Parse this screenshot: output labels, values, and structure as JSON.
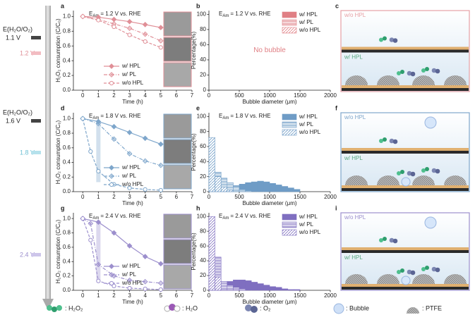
{
  "potentials": {
    "label_top": "E(H₂O/O₂)",
    "top_1": "1.1 V",
    "level_a": "1.2 V",
    "label_mid": "E(H₂O/O₂)",
    "mid_1": "1.6 V",
    "level_d": "1.8 V",
    "level_g": "2.4 V"
  },
  "chart_data": [
    {
      "panel": "a",
      "type": "line",
      "annotation": {
        "symbol": "E",
        "subscript": "Am",
        "text": "= 1.2 V vs. RHE"
      },
      "x_label": "Time (h)",
      "y_label": "H₂O₂ consumption (C/C₀)",
      "xlim": [
        -0.6,
        7
      ],
      "xticks": [
        0,
        1,
        2,
        3,
        4,
        5,
        6,
        7
      ],
      "ylim": [
        0,
        1.08
      ],
      "yticks": [
        {
          "value": 0,
          "label": "0.0"
        },
        0.2,
        0.4,
        0.6,
        0.8,
        {
          "value": 1,
          "label": "1.0"
        }
      ],
      "legend": "lower right",
      "series": [
        {
          "name": "w/ HPL",
          "color": "#e08f97",
          "marker": "diamond",
          "line": "solid",
          "x": [
            0,
            1,
            2,
            3,
            4,
            5
          ],
          "values": [
            1.0,
            0.99,
            0.96,
            0.93,
            0.89,
            0.85
          ]
        },
        {
          "name": "w/ PL",
          "color": "#e08f97",
          "marker": "half-diamond",
          "line": "dashdot",
          "x": [
            0,
            1,
            2,
            3,
            4,
            5
          ],
          "values": [
            1.0,
            0.96,
            0.9,
            0.84,
            0.76,
            0.67
          ]
        },
        {
          "name": "w/o HPL",
          "color": "#e08f97",
          "marker": "circle",
          "line": "dashed",
          "x": [
            0,
            1,
            2,
            3,
            4,
            5
          ],
          "values": [
            1.0,
            0.95,
            0.86,
            0.75,
            0.66,
            0.58
          ]
        }
      ]
    },
    {
      "panel": "b",
      "type": "histogram",
      "annotation": {
        "symbol": "E",
        "subscript": "Am",
        "text": "= 1.2 V vs. RHE"
      },
      "note": "No bubble",
      "x_label": "Bubble diameter (μm)",
      "y_label": "Percentage(%)",
      "xlim": [
        0,
        2000
      ],
      "xticks": [
        0,
        500,
        1000,
        1500,
        2000
      ],
      "ylim": [
        0,
        105
      ],
      "yticks": [
        0,
        20,
        40,
        60,
        80,
        100
      ],
      "legend": "upper right",
      "series": [
        {
          "name": "w/ HPL",
          "color": "#e07f84",
          "pattern": "solid",
          "bins": [],
          "values": []
        },
        {
          "name": "w/ PL",
          "color": "#e07f84",
          "pattern": "lines",
          "bins": [],
          "values": []
        },
        {
          "name": "w/o HPL",
          "color": "#e07f84",
          "pattern": "hatch",
          "bins": [],
          "values": []
        }
      ]
    },
    {
      "panel": "d",
      "type": "line",
      "annotation": {
        "symbol": "E",
        "subscript": "Am",
        "text": "= 1.8 V vs. RHE"
      },
      "x_label": "Time (h)",
      "y_label": "H₂O₂ consumption (C/C₀)",
      "xlim": [
        -0.6,
        7
      ],
      "xticks": [
        0,
        1,
        2,
        3,
        4,
        5,
        6,
        7
      ],
      "ylim": [
        0,
        1.08
      ],
      "yticks": [
        {
          "value": 0,
          "label": "0.0"
        },
        0.2,
        0.4,
        0.6,
        0.8,
        {
          "value": 1,
          "label": "1.0"
        }
      ],
      "legend": "lower right",
      "series": [
        {
          "name": "w/ HPL",
          "color": "#7ea6cb",
          "marker": "diamond",
          "line": "solid",
          "x": [
            0,
            1,
            2,
            3,
            4,
            5
          ],
          "values": [
            1.0,
            0.96,
            0.89,
            0.81,
            0.73,
            0.65
          ]
        },
        {
          "name": "w/ PL",
          "color": "#7ea6cb",
          "marker": "half-diamond",
          "line": "dashdot",
          "x": [
            0,
            1,
            2,
            3,
            4,
            5
          ],
          "values": [
            1.0,
            0.93,
            0.72,
            0.52,
            0.42,
            0.36
          ]
        },
        {
          "name": "w/o HPL",
          "color": "#7ea6cb",
          "marker": "circle",
          "line": "dashed",
          "x": [
            0,
            0.5,
            1,
            2,
            3,
            4,
            5
          ],
          "values": [
            1.0,
            0.55,
            0.28,
            0.1,
            0.05,
            0.03,
            0.02
          ]
        }
      ]
    },
    {
      "panel": "e",
      "type": "histogram",
      "annotation": {
        "symbol": "E",
        "subscript": "Am",
        "text": "= 1.8 V vs. RHE"
      },
      "x_label": "Bubble diameter (μm)",
      "y_label": "Percentage(%)",
      "xlim": [
        0,
        2000
      ],
      "xticks": [
        0,
        500,
        1000,
        1500,
        2000
      ],
      "ylim": [
        0,
        105
      ],
      "yticks": [
        0,
        20,
        40,
        60,
        80,
        100
      ],
      "legend": "upper right",
      "series": [
        {
          "name": "w/ HPL",
          "color": "#6f9cc6",
          "pattern": "solid",
          "bins": [
            0,
            100,
            200,
            300,
            400,
            500,
            600,
            700,
            800,
            900,
            1000,
            1100,
            1200,
            1300,
            1400,
            1500
          ],
          "values": [
            2,
            3,
            4,
            6,
            8,
            10,
            12,
            13,
            14,
            13,
            11,
            9,
            7,
            5,
            3
          ]
        },
        {
          "name": "w/ PL",
          "color": "#6f9cc6",
          "pattern": "lines",
          "bins": [
            0,
            100,
            200,
            300,
            400,
            500,
            600,
            700
          ],
          "values": [
            33,
            26,
            18,
            12,
            7,
            3,
            1
          ]
        },
        {
          "name": "w/o HPL",
          "color": "#6f9cc6",
          "pattern": "hatch",
          "bins": [
            0,
            100,
            200,
            300,
            400
          ],
          "values": [
            72,
            20,
            6,
            2
          ]
        }
      ]
    },
    {
      "panel": "g",
      "type": "line",
      "annotation": {
        "symbol": "E",
        "subscript": "Am",
        "text": "= 2.4 V vs. RHE"
      },
      "x_label": "Time (h)",
      "y_label": "H₂O₂ consumption (C/C₀)",
      "xlim": [
        -0.6,
        7
      ],
      "xticks": [
        0,
        1,
        2,
        3,
        4,
        5,
        6,
        7
      ],
      "ylim": [
        0,
        1.08
      ],
      "yticks": [
        {
          "value": 0,
          "label": "0.0"
        },
        0.2,
        0.4,
        0.6,
        0.8,
        {
          "value": 1,
          "label": "1.0"
        }
      ],
      "legend": "lower right",
      "series": [
        {
          "name": "w/ HPL",
          "color": "#9c8fcd",
          "marker": "diamond",
          "line": "solid",
          "x": [
            0,
            1,
            2,
            3,
            4,
            5
          ],
          "values": [
            1.0,
            0.95,
            0.8,
            0.62,
            0.47,
            0.37
          ]
        },
        {
          "name": "w/ PL",
          "color": "#9c8fcd",
          "marker": "half-diamond",
          "line": "dashdot",
          "x": [
            0,
            0.5,
            1,
            2,
            3,
            4,
            5
          ],
          "values": [
            1.0,
            0.93,
            0.36,
            0.2,
            0.14,
            0.12,
            0.1
          ]
        },
        {
          "name": "w/o HPL",
          "color": "#9c8fcd",
          "marker": "circle",
          "line": "dashed",
          "x": [
            0,
            0.5,
            1,
            2,
            3,
            4,
            5
          ],
          "values": [
            1.0,
            0.7,
            0.13,
            0.06,
            0.03,
            0.02,
            0.01
          ]
        }
      ]
    },
    {
      "panel": "h",
      "type": "histogram",
      "annotation": {
        "symbol": "E",
        "subscript": "Am",
        "text": "= 2.4 V vs. RHE"
      },
      "x_label": "Bubble diameter (μm)",
      "y_label": "Percentage(%)",
      "xlim": [
        0,
        2000
      ],
      "xticks": [
        0,
        500,
        1000,
        1500,
        2000
      ],
      "ylim": [
        0,
        105
      ],
      "yticks": [
        0,
        20,
        40,
        60,
        80,
        100
      ],
      "legend": "upper right",
      "series": [
        {
          "name": "w/ HPL",
          "color": "#7f6fc0",
          "pattern": "solid",
          "bins": [
            0,
            100,
            200,
            300,
            400,
            500,
            600,
            700,
            800,
            900,
            1000,
            1100,
            1200,
            1300,
            1400,
            1500
          ],
          "values": [
            3,
            6,
            9,
            12,
            14,
            14,
            13,
            11,
            9,
            7,
            5,
            4,
            2,
            1,
            1
          ]
        },
        {
          "name": "w/ PL",
          "color": "#7f6fc0",
          "pattern": "lines",
          "bins": [
            0,
            100,
            200,
            300,
            400,
            500,
            600
          ],
          "values": [
            40,
            45,
            12,
            7,
            4,
            2
          ]
        },
        {
          "name": "w/o HPL",
          "color": "#7f6fc0",
          "pattern": "hatch",
          "bins": [
            0,
            100,
            200
          ],
          "values": [
            100,
            18
          ]
        }
      ]
    }
  ],
  "diagrams": [
    {
      "panel": "c",
      "top": "w/o HPL",
      "bottom": "w/ HPL"
    },
    {
      "panel": "f",
      "top": "w/o HPL",
      "bottom": "w/ HPL"
    },
    {
      "panel": "i",
      "top": "w/o HPL",
      "bottom": "w/ HPL"
    }
  ],
  "legend": {
    "h2o2": ": H₂O₂",
    "h2o": ": H₂O",
    "o2": ": O₂",
    "bubble": ": Bubble",
    "ptfe": ": PTFE"
  }
}
